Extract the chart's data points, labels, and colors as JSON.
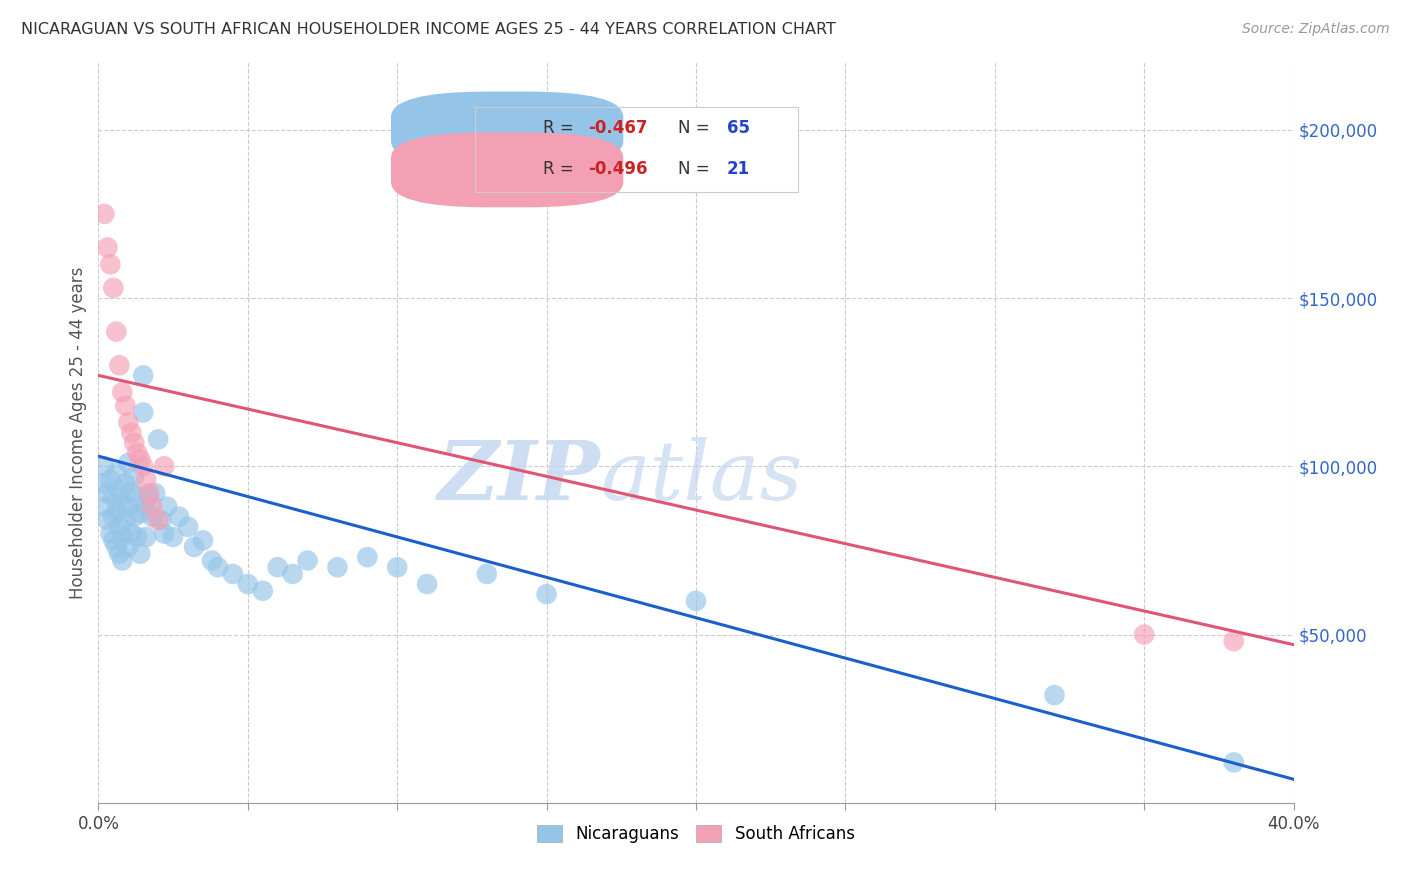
{
  "title": "NICARAGUAN VS SOUTH AFRICAN HOUSEHOLDER INCOME AGES 25 - 44 YEARS CORRELATION CHART",
  "source": "Source: ZipAtlas.com",
  "ylabel": "Householder Income Ages 25 - 44 years",
  "xlim": [
    0.0,
    0.4
  ],
  "ylim": [
    0,
    220000
  ],
  "xticks": [
    0.0,
    0.05,
    0.1,
    0.15,
    0.2,
    0.25,
    0.3,
    0.35,
    0.4
  ],
  "ytick_values": [
    50000,
    100000,
    150000,
    200000
  ],
  "ytick_labels": [
    "$50,000",
    "$100,000",
    "$150,000",
    "$200,000"
  ],
  "background_color": "#ffffff",
  "grid_color": "#cccccc",
  "blue_color": "#94c4e8",
  "pink_color": "#f4a0b4",
  "blue_line_color": "#1a5fcc",
  "pink_line_color": "#e05575",
  "blue_trend_x0": 0.0,
  "blue_trend_y0": 103000,
  "blue_trend_x1": 0.4,
  "blue_trend_y1": 7000,
  "pink_trend_x0": 0.0,
  "pink_trend_y0": 127000,
  "pink_trend_x1": 0.4,
  "pink_trend_y1": 47000,
  "nicaraguan_x": [
    0.001,
    0.002,
    0.002,
    0.003,
    0.003,
    0.004,
    0.004,
    0.005,
    0.005,
    0.005,
    0.006,
    0.006,
    0.006,
    0.007,
    0.007,
    0.007,
    0.008,
    0.008,
    0.008,
    0.009,
    0.009,
    0.01,
    0.01,
    0.01,
    0.011,
    0.011,
    0.012,
    0.012,
    0.013,
    0.013,
    0.014,
    0.014,
    0.015,
    0.015,
    0.016,
    0.016,
    0.017,
    0.018,
    0.019,
    0.02,
    0.021,
    0.022,
    0.023,
    0.025,
    0.027,
    0.03,
    0.032,
    0.035,
    0.038,
    0.04,
    0.045,
    0.05,
    0.055,
    0.06,
    0.065,
    0.07,
    0.08,
    0.09,
    0.1,
    0.11,
    0.13,
    0.15,
    0.2,
    0.32,
    0.38
  ],
  "nicaraguan_y": [
    95000,
    100000,
    88000,
    92000,
    84000,
    96000,
    80000,
    91000,
    85000,
    78000,
    98000,
    87000,
    76000,
    93000,
    82000,
    74000,
    89000,
    79000,
    72000,
    95000,
    84000,
    101000,
    88000,
    76000,
    92000,
    80000,
    97000,
    85000,
    91000,
    79000,
    86000,
    74000,
    127000,
    116000,
    88000,
    79000,
    91000,
    85000,
    92000,
    108000,
    84000,
    80000,
    88000,
    79000,
    85000,
    82000,
    76000,
    78000,
    72000,
    70000,
    68000,
    65000,
    63000,
    70000,
    68000,
    72000,
    70000,
    73000,
    70000,
    65000,
    68000,
    62000,
    60000,
    32000,
    12000
  ],
  "southafrican_x": [
    0.002,
    0.003,
    0.004,
    0.005,
    0.006,
    0.007,
    0.008,
    0.009,
    0.01,
    0.011,
    0.012,
    0.013,
    0.014,
    0.015,
    0.016,
    0.017,
    0.018,
    0.02,
    0.022,
    0.35,
    0.38
  ],
  "southafrican_y": [
    175000,
    165000,
    160000,
    153000,
    140000,
    130000,
    122000,
    118000,
    113000,
    110000,
    107000,
    104000,
    102000,
    100000,
    96000,
    92000,
    88000,
    84000,
    100000,
    50000,
    48000
  ]
}
